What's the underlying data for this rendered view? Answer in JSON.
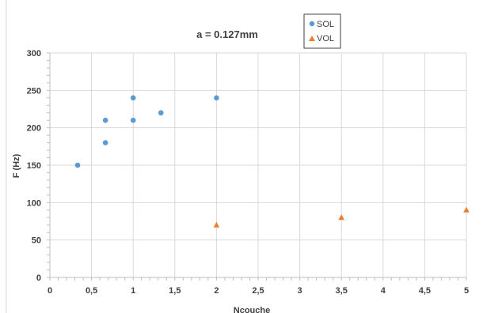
{
  "chart_data": {
    "type": "scatter",
    "title": "a = 0.127mm",
    "xlabel": "Ncouche",
    "ylabel": "F (Hz)",
    "xlim": [
      0,
      5
    ],
    "ylim": [
      0,
      300
    ],
    "x_ticks": [
      "0",
      "0,5",
      "1",
      "1,5",
      "2",
      "2,5",
      "3",
      "3,5",
      "4",
      "4,5",
      "5"
    ],
    "y_ticks": [
      "0",
      "50",
      "100",
      "150",
      "200",
      "250",
      "300"
    ],
    "grid": true,
    "legend_position": "top-right",
    "series": [
      {
        "name": "SOL",
        "marker": "circle",
        "color": "#5b9bd5",
        "points": [
          {
            "x": 0.333,
            "y": 150
          },
          {
            "x": 0.667,
            "y": 180
          },
          {
            "x": 0.667,
            "y": 210
          },
          {
            "x": 1,
            "y": 210
          },
          {
            "x": 1,
            "y": 240
          },
          {
            "x": 1.333,
            "y": 220
          },
          {
            "x": 2,
            "y": 240
          }
        ]
      },
      {
        "name": "VOL",
        "marker": "triangle",
        "color": "#ed7d31",
        "points": [
          {
            "x": 2,
            "y": 70
          },
          {
            "x": 3.5,
            "y": 80
          },
          {
            "x": 5,
            "y": 90
          }
        ]
      }
    ]
  }
}
